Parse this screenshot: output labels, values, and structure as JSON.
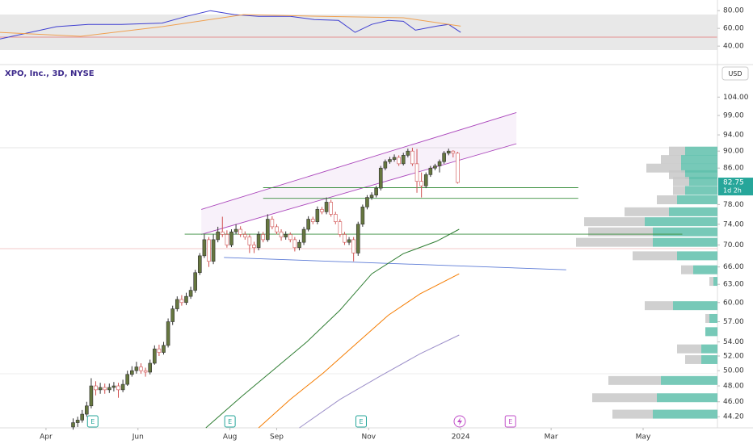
{
  "chart_data": [
    {
      "type": "candlestick",
      "title": "XPO, Inc., 3D, NYSE",
      "currency": "USD",
      "log_scale": true,
      "xlim": [
        60.5,
        536.3
      ],
      "ylim": [
        42.9,
        112
      ],
      "xticks": [
        {
          "value": 91,
          "label": "Apr"
        },
        {
          "value": 152,
          "label": "Jun"
        },
        {
          "value": 213,
          "label": "Aug"
        },
        {
          "value": 244,
          "label": "Sep"
        },
        {
          "value": 305,
          "label": "Nov"
        },
        {
          "value": 366,
          "label": "2024"
        },
        {
          "value": 426,
          "label": "Mar"
        },
        {
          "value": 487,
          "label": "May"
        }
      ],
      "yticks": [
        {
          "value": 104,
          "label": "104.00"
        },
        {
          "value": 99,
          "label": "99.00"
        },
        {
          "value": 94,
          "label": "94.00"
        },
        {
          "value": 90,
          "label": "90.00"
        },
        {
          "value": 86,
          "label": "86.00"
        },
        {
          "value": 78,
          "label": "78.00"
        },
        {
          "value": 74,
          "label": "74.00"
        },
        {
          "value": 70,
          "label": "70.00"
        },
        {
          "value": 66,
          "label": "66.00"
        },
        {
          "value": 63,
          "label": "63.00"
        },
        {
          "value": 60,
          "label": "60.00"
        },
        {
          "value": 57,
          "label": "57.00"
        },
        {
          "value": 54,
          "label": "54.00"
        },
        {
          "value": 52,
          "label": "52.00"
        },
        {
          "value": 50,
          "label": "50.00"
        },
        {
          "value": 48,
          "label": "48.00"
        },
        {
          "value": 46,
          "label": "46.00"
        },
        {
          "value": 44.2,
          "label": "44.20"
        }
      ],
      "up_color": "#66773f",
      "down_color": "#ffffff",
      "x": [
        109,
        112,
        115,
        118,
        121,
        124,
        127,
        130,
        133,
        136,
        139,
        142,
        145,
        148,
        151,
        154,
        157,
        160,
        163,
        166,
        169,
        172,
        175,
        178,
        181,
        184,
        187,
        190,
        193,
        196,
        199,
        202,
        205,
        208,
        211,
        214,
        217,
        220,
        223,
        226,
        229,
        232,
        235,
        238,
        241,
        244,
        247,
        250,
        253,
        256,
        259,
        262,
        265,
        268,
        271,
        274,
        277,
        280,
        283,
        286,
        289,
        292,
        295,
        298,
        301,
        304,
        307,
        310,
        313,
        316,
        319,
        322,
        325,
        328,
        331,
        334,
        337,
        340,
        343,
        346,
        349,
        352,
        355,
        358,
        361,
        364
      ],
      "open": [
        43.0,
        43.5,
        43.8,
        44.5,
        45.5,
        48.0,
        47.5,
        47.8,
        47.5,
        47.8,
        48.0,
        47.5,
        48.2,
        49.5,
        50.0,
        50.5,
        50.0,
        49.8,
        51.0,
        53.0,
        52.5,
        53.5,
        57.0,
        59.0,
        60.5,
        60.0,
        61.0,
        62.0,
        65.0,
        68.0,
        71.0,
        67.0,
        71.0,
        72.5,
        72.0,
        70.0,
        72.5,
        73.0,
        72.0,
        71.5,
        70.0,
        69.5,
        72.0,
        71.0,
        75.0,
        73.5,
        72.5,
        71.5,
        72.0,
        71.0,
        69.5,
        70.5,
        73.0,
        75.0,
        74.5,
        77.0,
        76.5,
        78.5,
        76.0,
        74.5,
        72.0,
        70.5,
        71.0,
        68.5,
        74.0,
        77.5,
        79.5,
        80.0,
        81.5,
        86.0,
        87.5,
        88.0,
        88.5,
        87.0,
        89.0,
        90.0,
        87.0,
        83.0,
        82.0,
        84.5,
        86.0,
        86.5,
        87.5,
        89.5,
        90.0,
        89.5
      ],
      "high": [
        44.0,
        44.2,
        45.0,
        46.0,
        49.0,
        48.6,
        48.4,
        48.3,
        48.3,
        48.5,
        48.4,
        48.8,
        50.0,
        50.6,
        51.2,
        51.0,
        50.4,
        51.5,
        53.5,
        53.6,
        54.0,
        57.5,
        59.5,
        61.0,
        61.2,
        61.6,
        62.6,
        65.5,
        68.5,
        72.0,
        71.5,
        72.0,
        73.5,
        75.5,
        72.8,
        73.0,
        74.0,
        73.6,
        72.6,
        72.0,
        70.6,
        72.6,
        72.5,
        76.0,
        75.6,
        74.0,
        73.0,
        72.6,
        72.4,
        71.5,
        71.0,
        73.5,
        75.6,
        75.5,
        77.6,
        77.5,
        79.5,
        79.0,
        76.5,
        75.0,
        72.5,
        71.5,
        71.5,
        74.5,
        78.0,
        80.0,
        80.6,
        82.0,
        86.5,
        88.0,
        88.6,
        89.2,
        89.0,
        89.6,
        90.6,
        90.8,
        90.5,
        85.0,
        85.0,
        86.5,
        87.0,
        88.0,
        90.0,
        90.6,
        90.2,
        89.8
      ],
      "low": [
        42.7,
        43.0,
        43.5,
        44.2,
        45.2,
        46.8,
        47.0,
        47.0,
        47.1,
        47.3,
        46.5,
        47.2,
        48.0,
        49.2,
        49.6,
        49.6,
        49.2,
        49.5,
        50.8,
        52.0,
        52.2,
        53.2,
        56.5,
        58.6,
        59.5,
        59.6,
        60.6,
        61.6,
        64.6,
        67.6,
        66.0,
        66.5,
        70.5,
        71.5,
        69.5,
        69.6,
        72.0,
        71.5,
        71.0,
        68.5,
        68.5,
        69.0,
        70.5,
        70.6,
        73.0,
        72.0,
        70.8,
        71.0,
        70.5,
        68.8,
        69.0,
        70.0,
        72.6,
        74.0,
        74.0,
        76.0,
        76.0,
        75.5,
        74.0,
        71.5,
        70.0,
        70.0,
        67.0,
        68.0,
        73.5,
        77.0,
        79.0,
        79.5,
        81.0,
        85.5,
        87.0,
        87.5,
        86.5,
        86.6,
        88.5,
        86.5,
        80.5,
        79.5,
        81.5,
        84.0,
        85.5,
        85.0,
        87.0,
        89.0,
        88.5,
        82.5
      ],
      "close": [
        43.5,
        43.8,
        44.5,
        45.5,
        48.0,
        47.5,
        47.8,
        47.5,
        47.8,
        48.0,
        47.5,
        48.2,
        49.5,
        50.0,
        50.5,
        50.0,
        49.8,
        51.0,
        53.0,
        52.5,
        53.5,
        57.0,
        59.0,
        60.5,
        60.0,
        61.0,
        62.0,
        65.0,
        68.0,
        71.0,
        67.0,
        71.0,
        72.5,
        72.0,
        70.0,
        72.5,
        73.0,
        72.0,
        71.5,
        70.0,
        69.5,
        72.0,
        71.0,
        75.0,
        73.5,
        72.5,
        71.5,
        72.0,
        71.0,
        69.5,
        70.5,
        73.0,
        75.0,
        74.5,
        77.0,
        76.5,
        78.5,
        76.0,
        74.5,
        72.0,
        70.5,
        71.0,
        68.5,
        74.0,
        77.5,
        79.5,
        80.0,
        81.5,
        86.0,
        87.5,
        88.0,
        88.5,
        87.0,
        89.0,
        90.0,
        87.0,
        83.0,
        82.0,
        84.5,
        86.0,
        86.5,
        87.5,
        89.5,
        90.0,
        89.5,
        82.75
      ],
      "last_price": 82.75,
      "countdown": "1d 2h",
      "last_price_color": "#26a69a",
      "moving_averages": [
        {
          "color": "#2e7d32",
          "x": [
            197,
            221,
            243,
            264,
            286,
            307,
            328,
            350,
            365
          ],
          "values": [
            42.9,
            46.7,
            50.3,
            54.0,
            58.8,
            64.8,
            68.4,
            70.7,
            73.0
          ]
        },
        {
          "color": "#f57c00",
          "x": [
            232,
            253,
            275,
            296,
            318,
            339,
            365
          ],
          "values": [
            42.9,
            46.3,
            49.7,
            53.6,
            58.0,
            61.4,
            64.8
          ]
        },
        {
          "color": "#9c8fc9",
          "x": [
            259,
            286,
            312,
            339,
            365
          ],
          "values": [
            42.9,
            46.3,
            49.2,
            52.3,
            55.0
          ]
        }
      ],
      "drawings": [
        {
          "color": "#ab47bc",
          "x": [
            194,
            403
          ],
          "values": [
            77.0,
            99.8
          ]
        },
        {
          "color": "#ab47bc",
          "x": [
            194,
            403
          ],
          "values": [
            72.0,
            91.8
          ]
        },
        {
          "color": "#388e3c",
          "x": [
            235,
            444
          ],
          "values": [
            81.6,
            81.6
          ]
        },
        {
          "color": "#388e3c",
          "x": [
            235,
            444
          ],
          "values": [
            79.3,
            79.3
          ]
        },
        {
          "color": "#388e3c",
          "x": [
            183,
            513
          ],
          "values": [
            72.05,
            72.05
          ]
        },
        {
          "color": "#5c7bd6",
          "x": [
            209,
            436
          ],
          "values": [
            67.7,
            65.5
          ]
        }
      ],
      "volume_profile": {
        "up_color": "#5fbfac",
        "down_color": "#c8c8c8",
        "price": [
          90,
          88,
          86,
          84.5,
          83,
          81,
          79,
          76.5,
          74.5,
          72.5,
          70.5,
          68,
          65.5,
          63.5,
          59.5,
          57.5,
          55.5,
          53,
          51.5,
          48.7,
          46.5,
          44.5
        ],
        "up": [
          40,
          45,
          45,
          40,
          35,
          40,
          50,
          60,
          90,
          80,
          80,
          50,
          30,
          5,
          55,
          10,
          15,
          20,
          20,
          70,
          75,
          80
        ],
        "down": [
          20,
          25,
          43,
          20,
          20,
          15,
          25,
          55,
          75,
          80,
          95,
          55,
          15,
          5,
          35,
          5,
          0,
          30,
          20,
          65,
          80,
          50
        ]
      },
      "events": [
        {
          "x": 122,
          "label": "E",
          "color": "#26a69a"
        },
        {
          "x": 213,
          "label": "E",
          "color": "#26a69a"
        },
        {
          "x": 300,
          "label": "E",
          "color": "#26a69a"
        },
        {
          "x": 399,
          "label": "E",
          "color": "#c04fc8"
        }
      ]
    },
    {
      "type": "line",
      "xlim": [
        60.5,
        536.3
      ],
      "ylim": [
        21,
        92
      ],
      "yticks": [
        {
          "value": 80,
          "label": "80.00"
        },
        {
          "value": 60,
          "label": "60.00"
        },
        {
          "value": 40,
          "label": "40.00"
        }
      ],
      "series": [
        {
          "color": "#3f3fd1",
          "x": [
            60.5,
            98,
            119,
            141,
            168,
            184,
            200,
            216,
            232,
            253,
            269,
            285,
            296,
            307,
            318,
            328,
            336,
            350,
            358,
            366
          ],
          "values": [
            48,
            62,
            64.5,
            64.5,
            66,
            73.5,
            80,
            75.5,
            73.5,
            73.5,
            70,
            69,
            55.5,
            64.5,
            69,
            68,
            58,
            62.5,
            64.5,
            55.5
          ]
        },
        {
          "color": "#f0a050",
          "x": [
            60.5,
            114,
            168,
            222,
            275,
            328,
            366
          ],
          "values": [
            55.5,
            51,
            62,
            75.5,
            73.5,
            72,
            62.5
          ]
        }
      ]
    }
  ]
}
